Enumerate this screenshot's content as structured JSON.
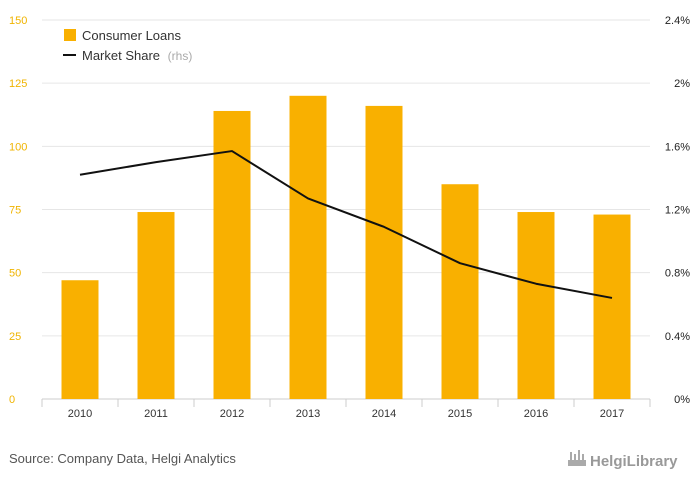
{
  "chart_data": {
    "type": "bar",
    "categories": [
      "2010",
      "2011",
      "2012",
      "2013",
      "2014",
      "2015",
      "2016",
      "2017"
    ],
    "series": [
      {
        "name": "Consumer Loans",
        "kind": "bar",
        "axis": "left",
        "color": "#f9b000",
        "values": [
          47,
          74,
          114,
          120,
          116,
          85,
          74,
          73
        ]
      },
      {
        "name": "Market Share",
        "kind": "line",
        "axis": "right",
        "color": "#111111",
        "values": [
          1.42,
          1.5,
          1.57,
          1.27,
          1.09,
          0.86,
          0.73,
          0.64
        ]
      }
    ],
    "ylim_left": [
      0,
      150
    ],
    "yticks_left": [
      "0",
      "25",
      "50",
      "75",
      "100",
      "125",
      "150"
    ],
    "ylim_right": [
      0,
      2.4
    ],
    "yticks_right": [
      "0%",
      "0.4%",
      "0.8%",
      "1.2%",
      "1.6%",
      "2%",
      "2.4%"
    ],
    "legend": {
      "position": "top-left",
      "items": [
        {
          "label": "Consumer Loans",
          "note": ""
        },
        {
          "label": "Market Share",
          "note": "(rhs)"
        }
      ]
    },
    "grid": true
  },
  "footer": {
    "source": "Source: Company Data, Helgi Analytics",
    "logo": "HelgiLibrary"
  }
}
